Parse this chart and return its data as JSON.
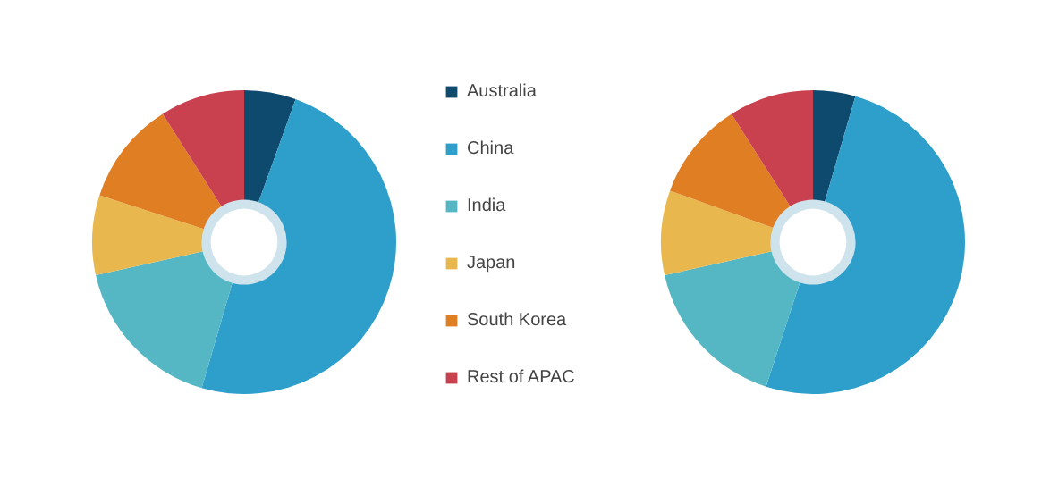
{
  "chart_data": [
    {
      "type": "donut",
      "categories": [
        "Australia",
        "China",
        "India",
        "Japan",
        "South Korea",
        "Rest of APAC"
      ],
      "values": [
        5.5,
        49,
        17,
        8.5,
        11,
        9
      ],
      "colors": [
        "#0e4a6e",
        "#2e9fcb",
        "#55b7c4",
        "#e8b84f",
        "#e07e24",
        "#c9404f"
      ],
      "legend": "right"
    },
    {
      "type": "donut",
      "categories": [
        null,
        null,
        null,
        null,
        null,
        null
      ],
      "values": [
        4.5,
        50.5,
        16.5,
        9,
        10.5,
        9
      ],
      "colors": [
        "#0e4a6e",
        "#2e9fcb",
        "#55b7c4",
        "#e8b84f",
        "#e07e24",
        "#c9404f"
      ]
    }
  ]
}
